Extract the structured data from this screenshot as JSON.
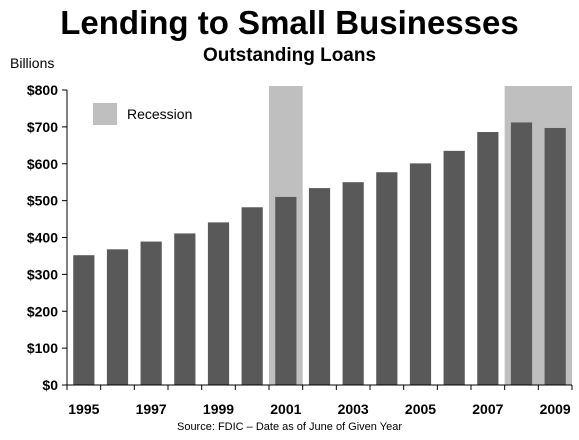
{
  "chart_data": {
    "type": "bar",
    "title": "Lending to Small Businesses",
    "subtitle": "Outstanding Loans",
    "ylabel": "Billions",
    "xlabel": "",
    "source": "Source: FDIC – Date as of June of Given Year",
    "categories": [
      "1995",
      "1996",
      "1997",
      "1998",
      "1999",
      "2000",
      "2001",
      "2002",
      "2003",
      "2004",
      "2005",
      "2006",
      "2007",
      "2008",
      "2009"
    ],
    "values": [
      352,
      368,
      389,
      411,
      441,
      482,
      510,
      534,
      550,
      577,
      601,
      635,
      686,
      712,
      697
    ],
    "ylim": [
      0,
      800
    ],
    "yticks": [
      0,
      100,
      200,
      300,
      400,
      500,
      600,
      700,
      800
    ],
    "ytick_labels": [
      "$0",
      "$100",
      "$200",
      "$300",
      "$400",
      "$500",
      "$600",
      "$700",
      "$800"
    ],
    "xtick_labels": [
      "1995",
      "1997",
      "1999",
      "2001",
      "2003",
      "2005",
      "2007",
      "2009"
    ],
    "recessions": [
      {
        "start": "2001",
        "end": "2001"
      },
      {
        "start": "2008",
        "end": "2009"
      }
    ],
    "legend": {
      "label": "Recession",
      "position": "top-left"
    },
    "bar_color": "#595959",
    "recession_color": "#bfbfbf",
    "grid": false
  }
}
